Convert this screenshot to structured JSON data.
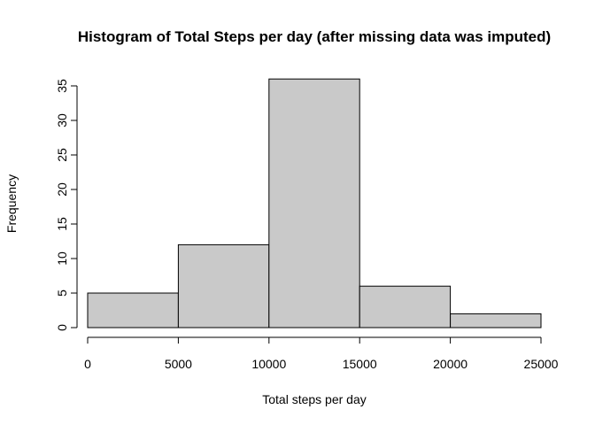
{
  "chart_data": {
    "type": "bar",
    "subtype": "histogram",
    "title": "Histogram of Total Steps per day (after missing data was imputed)",
    "xlabel": "Total steps per day",
    "ylabel": "Frequency",
    "bins": [
      {
        "start": 0,
        "end": 5000,
        "count": 5
      },
      {
        "start": 5000,
        "end": 10000,
        "count": 12
      },
      {
        "start": 10000,
        "end": 15000,
        "count": 36
      },
      {
        "start": 15000,
        "end": 20000,
        "count": 6
      },
      {
        "start": 20000,
        "end": 25000,
        "count": 2
      }
    ],
    "xticks": [
      0,
      5000,
      10000,
      15000,
      20000,
      25000
    ],
    "yticks": [
      0,
      5,
      10,
      15,
      20,
      25,
      30,
      35
    ],
    "xlim": [
      0,
      25000
    ],
    "ylim": [
      0,
      36
    ],
    "grid": false,
    "bar_color": "#c9c9c9"
  }
}
